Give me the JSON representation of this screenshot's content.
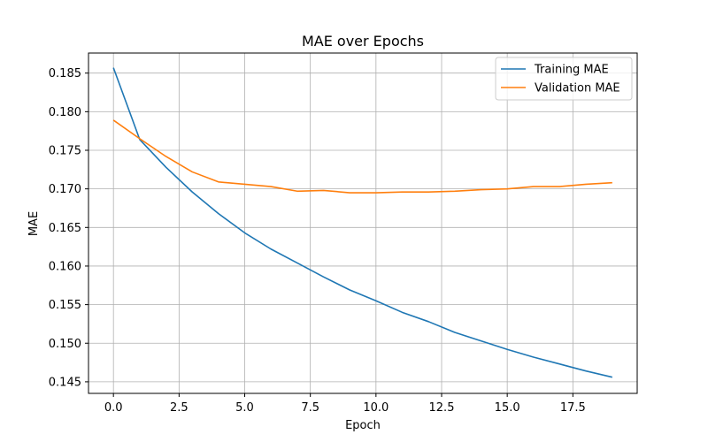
{
  "chart_data": {
    "type": "line",
    "title": "MAE over Epochs",
    "xlabel": "Epoch",
    "ylabel": "MAE",
    "xlim": [
      -0.95,
      19.95
    ],
    "ylim": [
      0.1435,
      0.1876
    ],
    "xticks": [
      0.0,
      2.5,
      5.0,
      7.5,
      10.0,
      12.5,
      15.0,
      17.5
    ],
    "xtick_labels": [
      "0.0",
      "2.5",
      "5.0",
      "7.5",
      "10.0",
      "12.5",
      "15.0",
      "17.5"
    ],
    "yticks": [
      0.145,
      0.15,
      0.155,
      0.16,
      0.165,
      0.17,
      0.175,
      0.18,
      0.185
    ],
    "ytick_labels": [
      "0.145",
      "0.150",
      "0.155",
      "0.160",
      "0.165",
      "0.170",
      "0.175",
      "0.180",
      "0.185"
    ],
    "grid": true,
    "legend_position": "top-right",
    "x": [
      0,
      1,
      2,
      3,
      4,
      5,
      6,
      7,
      8,
      9,
      10,
      11,
      12,
      13,
      14,
      15,
      16,
      17,
      18,
      19
    ],
    "series": [
      {
        "name": "Training MAE",
        "color": "#1f77b4",
        "values": [
          0.1857,
          0.1764,
          0.1728,
          0.1696,
          0.1668,
          0.1643,
          0.1622,
          0.1604,
          0.1586,
          0.1569,
          0.1555,
          0.154,
          0.1528,
          0.1514,
          0.1503,
          0.1492,
          0.1482,
          0.1473,
          0.1464,
          0.1456
        ]
      },
      {
        "name": "Validation MAE",
        "color": "#ff7f0e",
        "values": [
          0.1789,
          0.1765,
          0.1742,
          0.1722,
          0.1709,
          0.1706,
          0.1703,
          0.1697,
          0.1698,
          0.1695,
          0.1695,
          0.1696,
          0.1696,
          0.1697,
          0.1699,
          0.17,
          0.1703,
          0.1703,
          0.1706,
          0.1708
        ]
      }
    ]
  }
}
